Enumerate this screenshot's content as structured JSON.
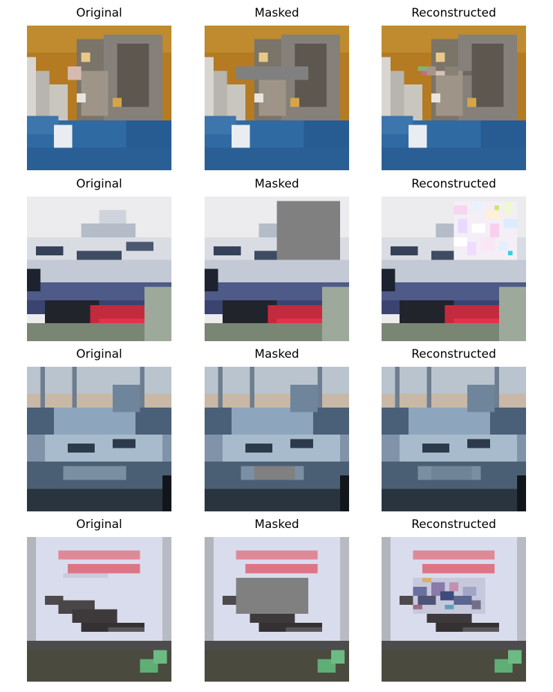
{
  "figure": {
    "rows": [
      {
        "subject": "cat",
        "panels": [
          {
            "title": "Original",
            "mask": null,
            "patch": null
          },
          {
            "title": "Masked",
            "mask": "bar",
            "patch": null
          },
          {
            "title": "Reconstructed",
            "mask": null,
            "patch": "small-noise"
          }
        ]
      },
      {
        "subject": "ship-white",
        "panels": [
          {
            "title": "Original",
            "mask": null,
            "patch": null
          },
          {
            "title": "Masked",
            "mask": "large-top-right",
            "patch": null
          },
          {
            "title": "Reconstructed",
            "mask": null,
            "patch": "pastel-noise"
          }
        ]
      },
      {
        "subject": "ship-blue",
        "panels": [
          {
            "title": "Original",
            "mask": null,
            "patch": null
          },
          {
            "title": "Masked",
            "mask": "small-bottom",
            "patch": null
          },
          {
            "title": "Reconstructed",
            "mask": null,
            "patch": "blend"
          }
        ]
      },
      {
        "subject": "airplane",
        "panels": [
          {
            "title": "Original",
            "mask": null,
            "patch": null
          },
          {
            "title": "Masked",
            "mask": "center",
            "patch": null
          },
          {
            "title": "Reconstructed",
            "mask": null,
            "patch": "color-noise"
          }
        ]
      }
    ],
    "mask_color": "#808080"
  }
}
